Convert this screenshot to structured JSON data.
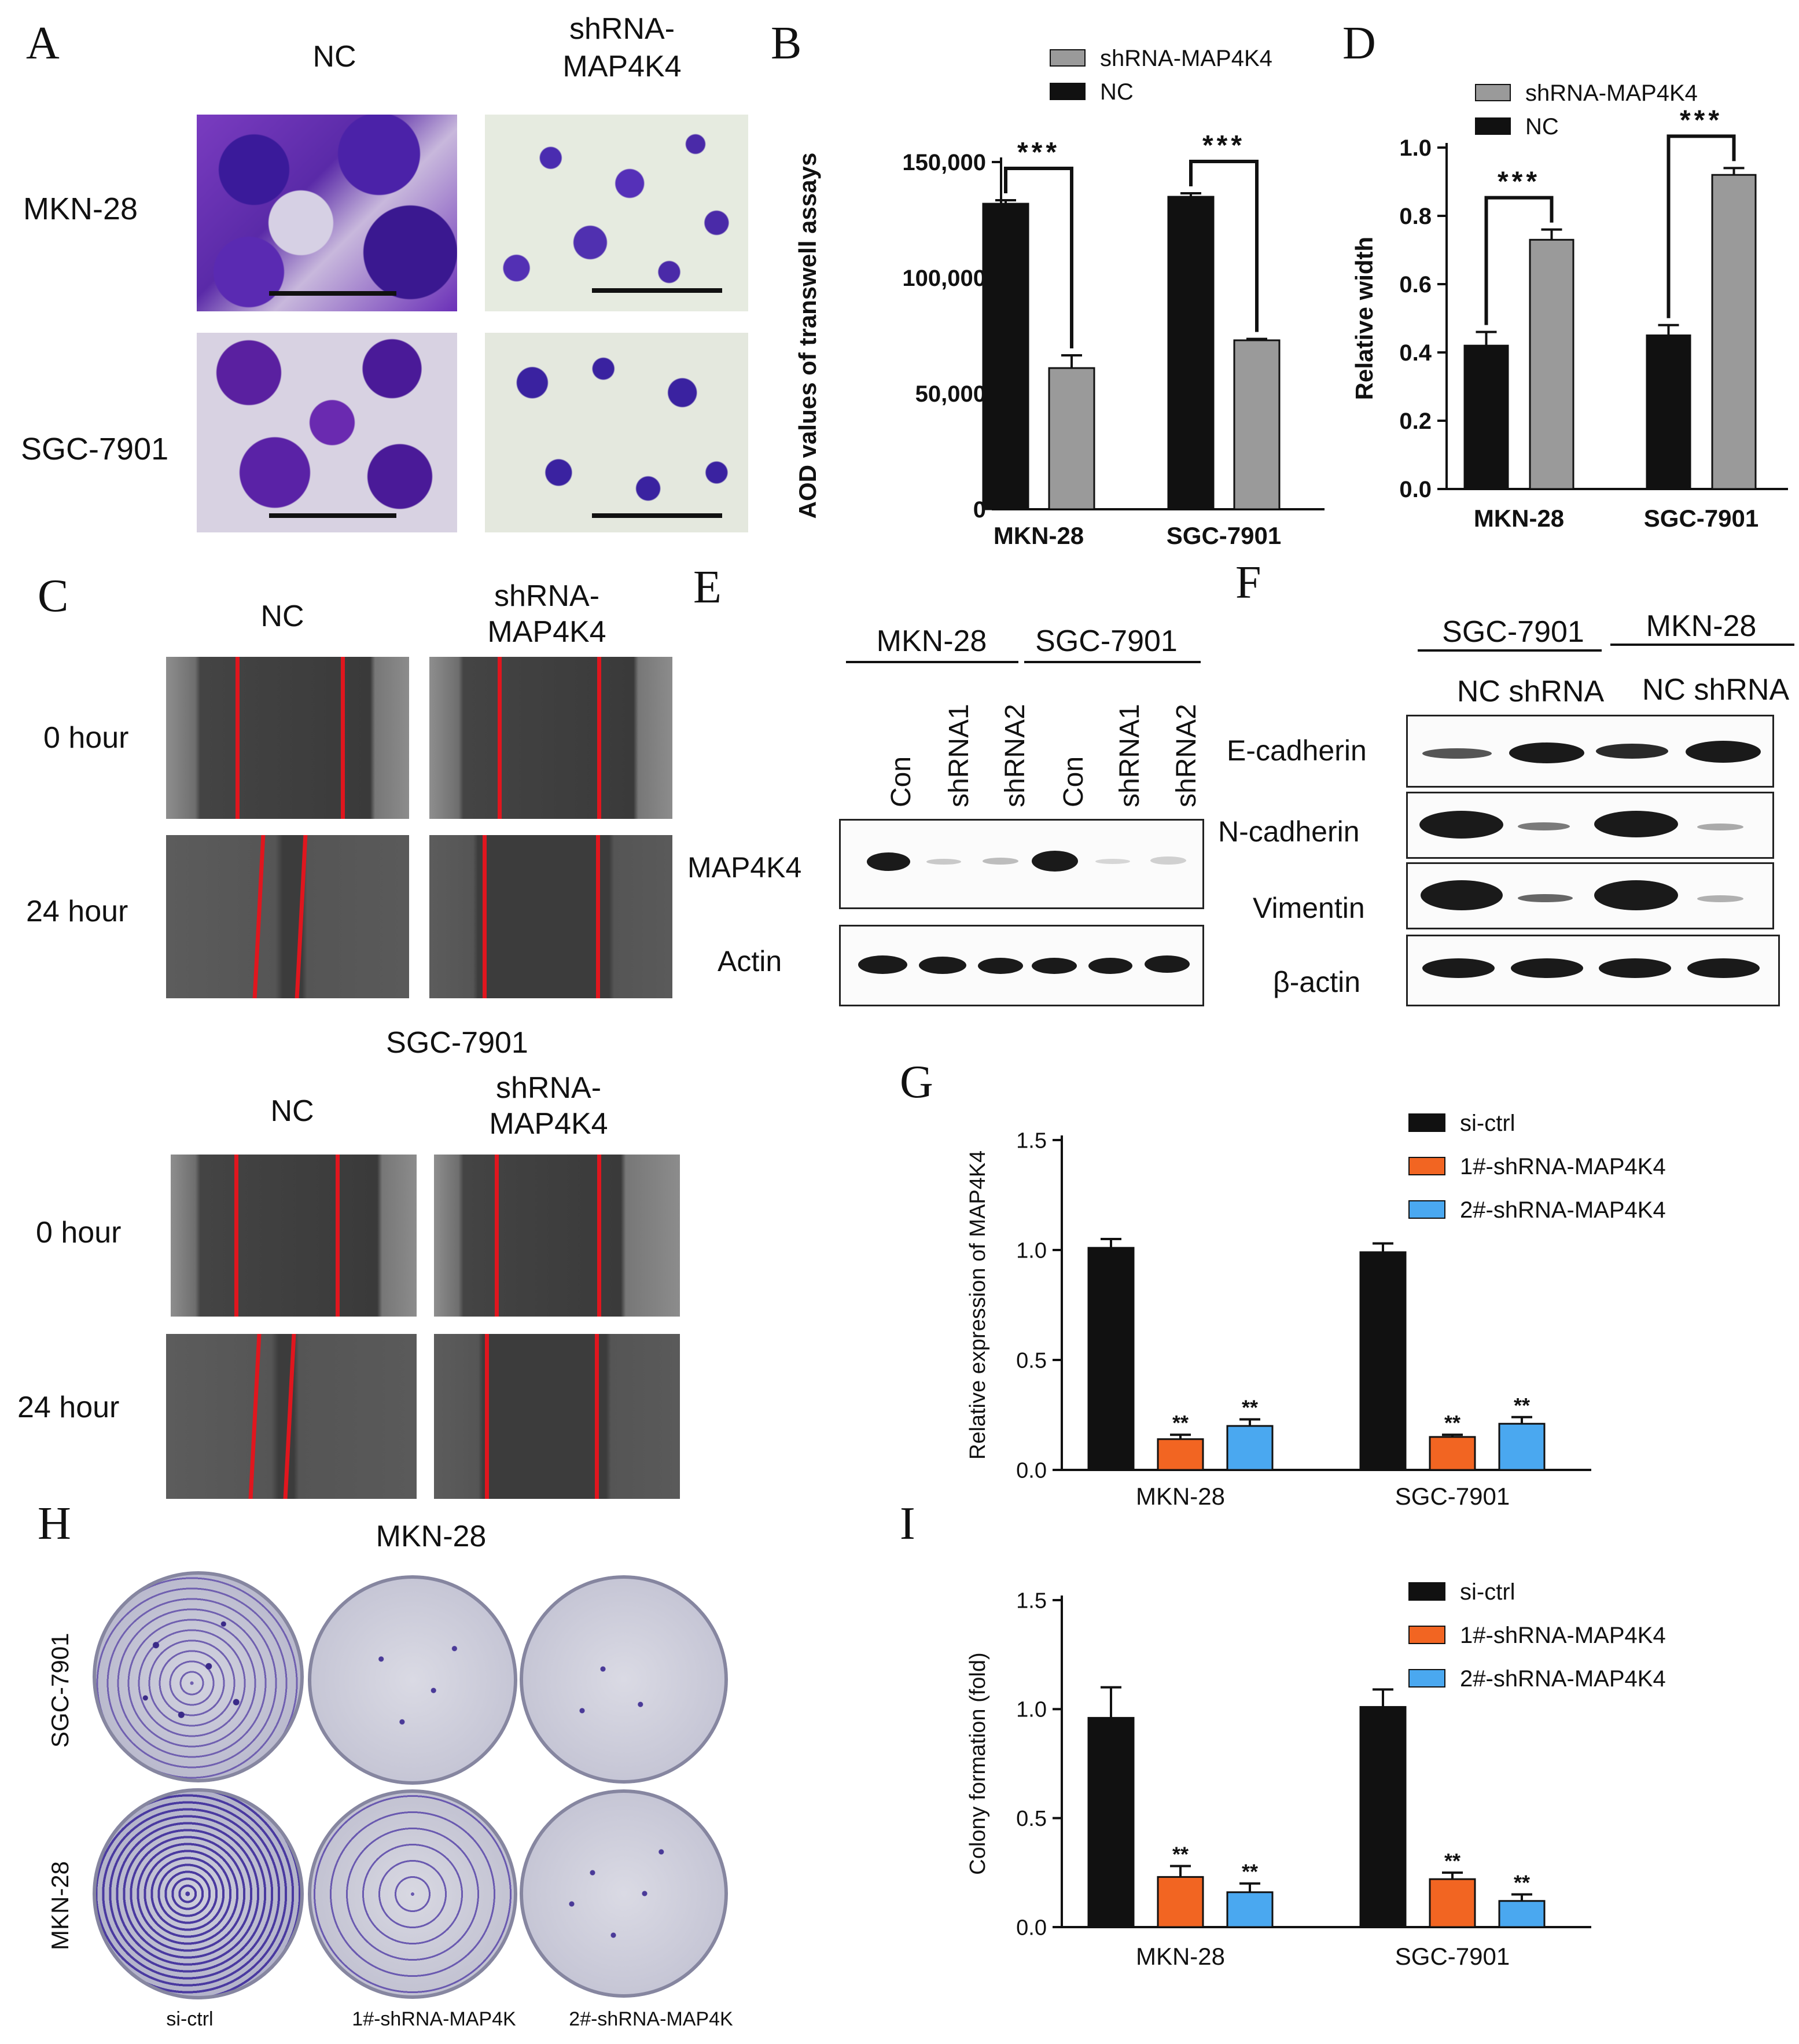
{
  "panel_letters": {
    "A": "A",
    "B": "B",
    "C": "C",
    "D": "D",
    "E": "E",
    "F": "F",
    "G": "G",
    "H": "H",
    "I": "I"
  },
  "panelA": {
    "col_nc": "NC",
    "col_sh_line1": "shRNA-",
    "col_sh_line2": "MAP4K4",
    "row_mkn": "MKN-28",
    "row_sgc": "SGC-7901"
  },
  "panelC": {
    "col_nc": "NC",
    "col_sh_line1": "shRNA-",
    "col_sh_line2": "MAP4K4",
    "row0": "0 hour",
    "row24": "24 hour",
    "subtitle": "SGC-7901",
    "col_nc_2": "NC",
    "col_sh2_line1": "shRNA-",
    "col_sh2_line2": "MAP4K4",
    "row0_2": "0 hour",
    "row24_2": "24 hour"
  },
  "panelE": {
    "group1": "MKN-28",
    "group2": "SGC-7901",
    "lanes": [
      "Con",
      "shRNA1",
      "shRNA2",
      "Con",
      "shRNA1",
      "shRNA2"
    ],
    "row1": "MAP4K4",
    "row2": "Actin"
  },
  "panelF": {
    "group1": "SGC-7901",
    "group2": "MKN-28",
    "cols1": "NC shRNA",
    "cols2": "NC shRNA",
    "rows": [
      "E-cadherin",
      "N-cadherin",
      "Vimentin",
      "β-actin"
    ]
  },
  "panelH": {
    "title": "MKN-28",
    "row1": "SGC-7901",
    "row2": "MKN-28",
    "cols": [
      "si-ctrl",
      "1#-shRNA-MAP4K",
      "2#-shRNA-MAP4K"
    ]
  },
  "colors": {
    "black": "#111111",
    "gray": "#9a9a9a",
    "orange": "#f26522",
    "blue": "#4aa8f0"
  },
  "chart_data": [
    {
      "id": "B",
      "type": "bar",
      "categories": [
        "MKN-28",
        "SGC-7901"
      ],
      "series": [
        {
          "name": "NC",
          "values": [
            132000,
            135000
          ],
          "errors": [
            1500,
            1500
          ],
          "color": "#111111"
        },
        {
          "name": "shRNA-MAP4K4",
          "values": [
            61000,
            73000
          ],
          "errors": [
            5500,
            600
          ],
          "color": "#9a9a9a"
        }
      ],
      "legend": [
        "shRNA-MAP4K4",
        "NC"
      ],
      "ylabel": "AOD values of transwell assays",
      "ylim": [
        0,
        150000
      ],
      "yticks": [
        "0",
        "50,000",
        "100,000",
        "150,000"
      ],
      "ytick_values": [
        0,
        50000,
        100000,
        150000
      ],
      "significance": [
        "***",
        "***"
      ]
    },
    {
      "id": "D",
      "type": "bar",
      "categories": [
        "MKN-28",
        "SGC-7901"
      ],
      "series": [
        {
          "name": "NC",
          "values": [
            0.42,
            0.45
          ],
          "errors": [
            0.04,
            0.03
          ],
          "color": "#111111"
        },
        {
          "name": "shRNA-MAP4K4",
          "values": [
            0.73,
            0.92
          ],
          "errors": [
            0.03,
            0.02
          ],
          "color": "#9a9a9a"
        }
      ],
      "legend": [
        "shRNA-MAP4K4",
        "NC"
      ],
      "ylabel": "Relative width",
      "ylim": [
        0,
        1.0
      ],
      "yticks": [
        "0.0",
        "0.2",
        "0.4",
        "0.6",
        "0.8",
        "1.0"
      ],
      "ytick_values": [
        0,
        0.2,
        0.4,
        0.6,
        0.8,
        1.0
      ],
      "significance": [
        "***",
        "***"
      ]
    },
    {
      "id": "G",
      "type": "bar",
      "categories": [
        "MKN-28",
        "SGC-7901"
      ],
      "series": [
        {
          "name": "si-ctrl",
          "values": [
            1.01,
            0.99
          ],
          "errors": [
            0.04,
            0.04
          ],
          "color": "#111111"
        },
        {
          "name": "1#-shRNA-MAP4K4",
          "values": [
            0.14,
            0.15
          ],
          "errors": [
            0.02,
            0.01
          ],
          "color": "#f26522"
        },
        {
          "name": "2#-shRNA-MAP4K4",
          "values": [
            0.2,
            0.21
          ],
          "errors": [
            0.03,
            0.03
          ],
          "color": "#4aa8f0"
        }
      ],
      "legend": [
        "si-ctrl",
        "1#-shRNA-MAP4K4",
        "2#-shRNA-MAP4K4"
      ],
      "ylabel": "Relative expression of MAP4K4",
      "ylim": [
        0,
        1.5
      ],
      "yticks": [
        "0.0",
        "0.5",
        "1.0",
        "1.5"
      ],
      "ytick_values": [
        0,
        0.5,
        1.0,
        1.5
      ],
      "annotation": "**"
    },
    {
      "id": "I",
      "type": "bar",
      "categories": [
        "MKN-28",
        "SGC-7901"
      ],
      "series": [
        {
          "name": "si-ctrl",
          "values": [
            0.96,
            1.01
          ],
          "errors": [
            0.14,
            0.08
          ],
          "color": "#111111"
        },
        {
          "name": "1#-shRNA-MAP4K4",
          "values": [
            0.23,
            0.22
          ],
          "errors": [
            0.05,
            0.03
          ],
          "color": "#f26522"
        },
        {
          "name": "2#-shRNA-MAP4K4",
          "values": [
            0.16,
            0.12
          ],
          "errors": [
            0.04,
            0.03
          ],
          "color": "#4aa8f0"
        }
      ],
      "legend": [
        "si-ctrl",
        "1#-shRNA-MAP4K4",
        "2#-shRNA-MAP4K4"
      ],
      "ylabel": "Colony formation (fold)",
      "ylim": [
        0,
        1.5
      ],
      "yticks": [
        "0.0",
        "0.5",
        "1.0",
        "1.5"
      ],
      "ytick_values": [
        0,
        0.5,
        1.0,
        1.5
      ],
      "annotation": "**"
    }
  ]
}
